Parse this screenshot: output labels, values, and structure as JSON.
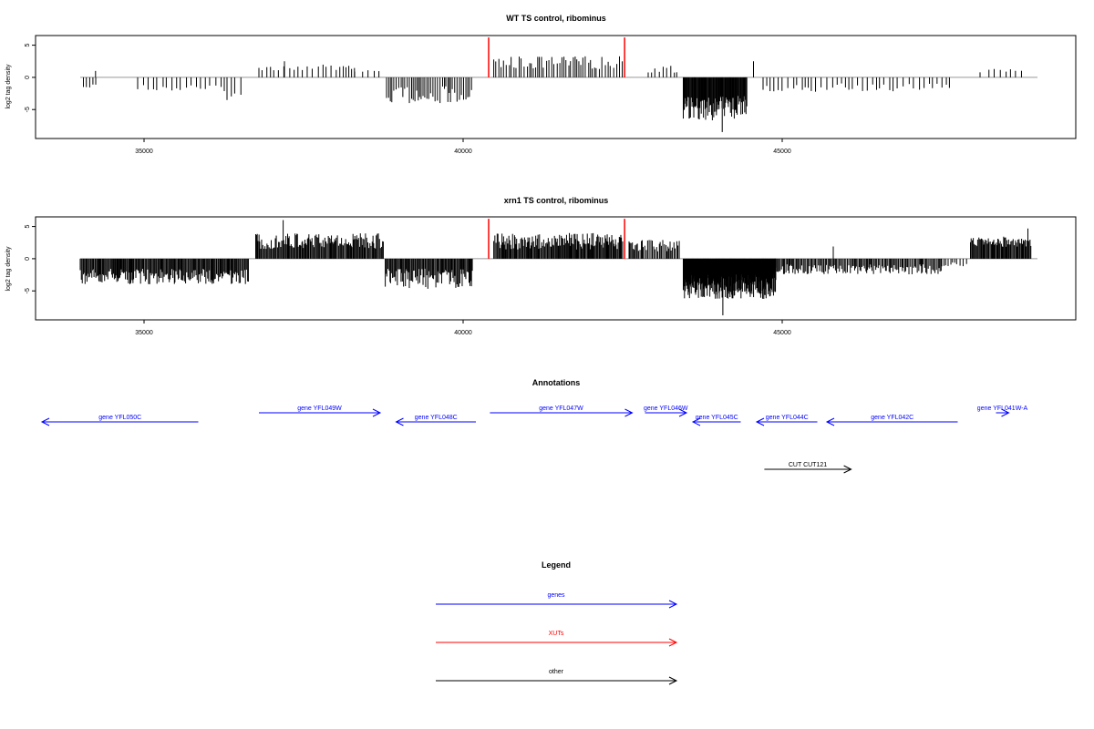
{
  "chart_data": [
    {
      "type": "bar",
      "title": "WT TS control, ribominus",
      "xlabel": "",
      "ylabel": "log2 tag density",
      "xlim": [
        33300,
        49600
      ],
      "ylim": [
        -9.5,
        6.5
      ],
      "xticks": [
        35000,
        40000,
        45000
      ],
      "yticks": [
        5,
        0,
        -5
      ],
      "xtick_labels": [
        "35000",
        "40000",
        "45000"
      ],
      "ytick_labels": [
        "5",
        "0",
        "-5"
      ],
      "baseline_range": [
        34000,
        49000
      ],
      "markers": [
        {
          "x": 40400,
          "y": 6.2,
          "color": "#ff0000"
        },
        {
          "x": 42530,
          "y": 6.2,
          "color": "#ff0000"
        }
      ],
      "segments": [
        {
          "x0": 34050,
          "x1": 34300,
          "mean": -1.2,
          "amp": 0.8,
          "step": 60
        },
        {
          "x0": 34900,
          "x1": 36300,
          "mean": -1.5,
          "amp": 1.0,
          "step": 75
        },
        {
          "x0": 36300,
          "x1": 36600,
          "mean": -2.8,
          "amp": 1.4,
          "step": 70
        },
        {
          "x0": 36800,
          "x1": 38300,
          "mean": 1.4,
          "amp": 0.9,
          "step": 70
        },
        {
          "x0": 38300,
          "x1": 38750,
          "mean": 0.9,
          "amp": 0.6,
          "step": 90
        },
        {
          "x0": 38800,
          "x1": 40150,
          "mean": -2.3,
          "amp": 2.6,
          "step": 30
        },
        {
          "x0": 40480,
          "x1": 42500,
          "mean": 2.0,
          "amp": 2.0,
          "step": 40
        },
        {
          "x0": 42900,
          "x1": 43400,
          "mean": 1.2,
          "amp": 1.5,
          "step": 60
        },
        {
          "x0": 43450,
          "x1": 44450,
          "mean": -4.2,
          "amp": 3.8,
          "step": 10
        },
        {
          "x0": 44700,
          "x1": 47700,
          "mean": -1.4,
          "amp": 1.3,
          "step": 70
        },
        {
          "x0": 48100,
          "x1": 48800,
          "mean": 1.0,
          "amp": 0.6,
          "step": 110
        }
      ],
      "special_bars": [
        {
          "x": 34240,
          "y": 1.0
        },
        {
          "x": 44060,
          "y": -8.5
        },
        {
          "x": 44550,
          "y": 2.5
        },
        {
          "x": 37200,
          "y": 2.5
        }
      ]
    },
    {
      "type": "bar",
      "title": "xrn1 TS control, ribominus",
      "xlabel": "",
      "ylabel": "log2 tag density",
      "xlim": [
        33300,
        49600
      ],
      "ylim": [
        -9.5,
        6.5
      ],
      "xticks": [
        35000,
        40000,
        45000
      ],
      "yticks": [
        5,
        0,
        -5
      ],
      "xtick_labels": [
        "35000",
        "40000",
        "45000"
      ],
      "ytick_labels": [
        "5",
        "0",
        "-5"
      ],
      "baseline_range": [
        34000,
        49000
      ],
      "markers": [
        {
          "x": 40400,
          "y": 6.2,
          "color": "#ff0000"
        },
        {
          "x": 42530,
          "y": 6.2,
          "color": "#ff0000"
        }
      ],
      "segments": [
        {
          "x0": 34000,
          "x1": 36650,
          "mean": -2.4,
          "amp": 2.4,
          "step": 14
        },
        {
          "x0": 36750,
          "x1": 38750,
          "mean": 2.4,
          "amp": 2.5,
          "step": 14
        },
        {
          "x0": 38780,
          "x1": 40150,
          "mean": -2.6,
          "amp": 3.2,
          "step": 14
        },
        {
          "x0": 40480,
          "x1": 42500,
          "mean": 2.3,
          "amp": 2.6,
          "step": 14
        },
        {
          "x0": 42600,
          "x1": 43400,
          "mean": 1.8,
          "amp": 2.0,
          "step": 20
        },
        {
          "x0": 43450,
          "x1": 44900,
          "mean": -3.8,
          "amp": 3.9,
          "step": 6
        },
        {
          "x0": 44900,
          "x1": 47500,
          "mean": -1.4,
          "amp": 1.6,
          "step": 18
        },
        {
          "x0": 47500,
          "x1": 47900,
          "mean": -0.8,
          "amp": 0.8,
          "step": 40
        },
        {
          "x0": 47950,
          "x1": 48900,
          "mean": 2.4,
          "amp": 1.6,
          "step": 14
        }
      ],
      "special_bars": [
        {
          "x": 37180,
          "y": 6.0
        },
        {
          "x": 44070,
          "y": -8.8
        },
        {
          "x": 48850,
          "y": 4.7
        },
        {
          "x": 45800,
          "y": 1.9
        }
      ]
    }
  ],
  "annotations": {
    "title": "Annotations",
    "features": [
      {
        "label": "gene YFL050C",
        "start": 33400,
        "end": 35850,
        "row": 2,
        "dir": "left",
        "color": "#0000ff"
      },
      {
        "label": "gene YFL049W",
        "start": 36800,
        "end": 38700,
        "row": 1,
        "dir": "right",
        "color": "#0000ff"
      },
      {
        "label": "gene YFL048C",
        "start": 38950,
        "end": 40200,
        "row": 2,
        "dir": "left",
        "color": "#0000ff"
      },
      {
        "label": "gene YFL047W",
        "start": 40420,
        "end": 42650,
        "row": 1,
        "dir": "right",
        "color": "#0000ff"
      },
      {
        "label": "gene YFL046W",
        "start": 42850,
        "end": 43500,
        "row": 1,
        "dir": "right",
        "color": "#0000ff"
      },
      {
        "label": "gene YFL045C",
        "start": 43600,
        "end": 44350,
        "row": 2,
        "dir": "left",
        "color": "#0000ff"
      },
      {
        "label": "gene YFL044C",
        "start": 44600,
        "end": 45550,
        "row": 2,
        "dir": "left",
        "color": "#0000ff"
      },
      {
        "label": "gene YFL042C",
        "start": 45700,
        "end": 47750,
        "row": 2,
        "dir": "left",
        "color": "#0000ff"
      },
      {
        "label": "gene YFL041W-A",
        "start": 48350,
        "end": 48550,
        "row": 1,
        "dir": "right",
        "color": "#0000ff"
      },
      {
        "label": "CUT CUT121",
        "start": 44720,
        "end": 46080,
        "row": 3,
        "dir": "right",
        "color": "#000000"
      }
    ]
  },
  "legend": {
    "title": "Legend",
    "items": [
      {
        "label": "genes",
        "color": "#0000ff"
      },
      {
        "label": "XUTs",
        "color": "#ff0000"
      },
      {
        "label": "other",
        "color": "#000000"
      }
    ]
  }
}
